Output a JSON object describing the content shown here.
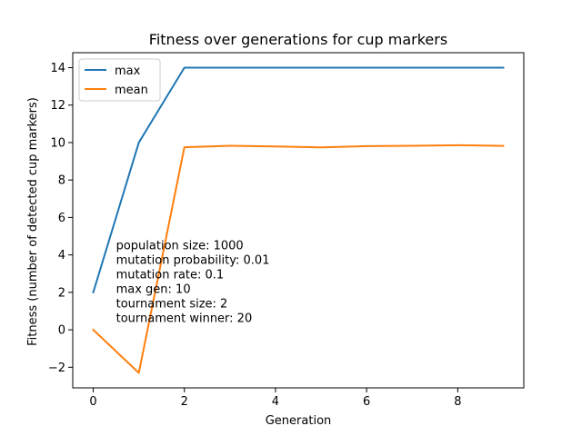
{
  "chart_data": {
    "type": "line",
    "title": "Fitness over generations for cup markers",
    "xlabel": "Generation",
    "ylabel": "Fitness (number of detected cup markers)",
    "x": [
      0,
      1,
      2,
      3,
      4,
      5,
      6,
      7,
      8,
      9
    ],
    "xlim": [
      -0.45,
      9.45
    ],
    "ylim": [
      -3.1,
      14.8
    ],
    "xticks": [
      0,
      2,
      4,
      6,
      8
    ],
    "yticks": [
      -2,
      0,
      2,
      4,
      6,
      8,
      10,
      12,
      14
    ],
    "grid": false,
    "legend": "upper left",
    "series": [
      {
        "name": "max",
        "color": "#1f77b4",
        "values": [
          2,
          10,
          14,
          14,
          14,
          14,
          14,
          14,
          14,
          14
        ]
      },
      {
        "name": "mean",
        "color": "#ff7f0e",
        "values": [
          0,
          -2.3,
          9.75,
          9.83,
          9.79,
          9.74,
          9.81,
          9.83,
          9.86,
          9.82
        ]
      }
    ],
    "annotation": {
      "x": 0.5,
      "y_top": 4.5,
      "lines": [
        "population size: 1000",
        "mutation probability: 0.01",
        "mutation rate: 0.1",
        "max gen: 10",
        "tournament size: 2",
        "tournament winner: 20"
      ]
    }
  }
}
